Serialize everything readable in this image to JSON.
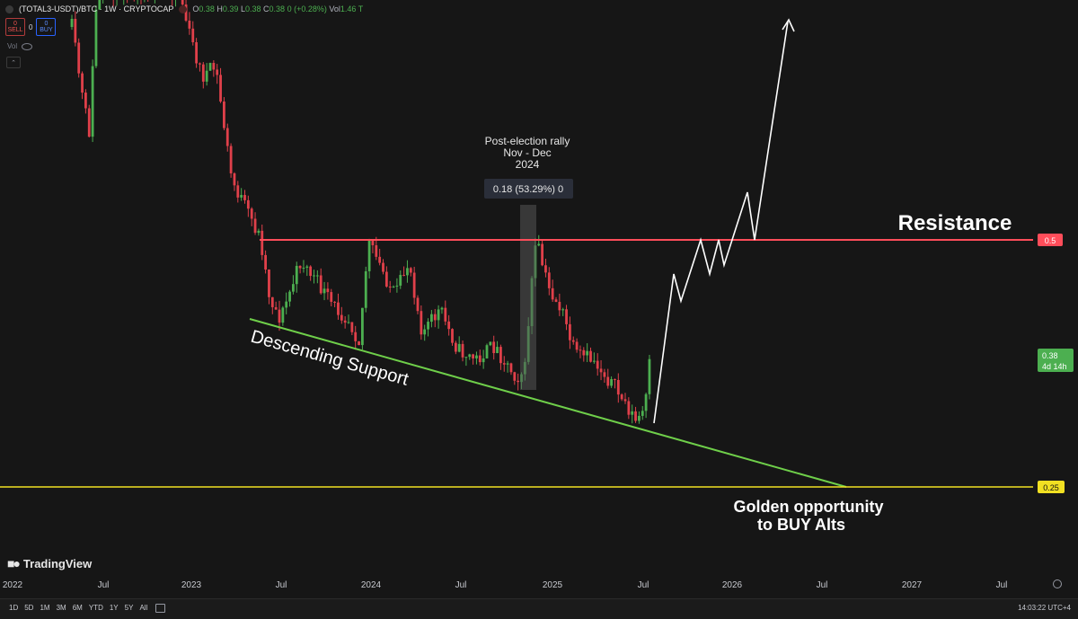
{
  "symbol": {
    "title": "(TOTAL3-USDT)/BTC · 1W · CRYPTOCAP"
  },
  "ohlc": {
    "o_label": "O",
    "o": "0.38",
    "h_label": "H",
    "h": "0.39",
    "l_label": "L",
    "l": "0.38",
    "c_label": "C",
    "c": "0.38",
    "change": "0 (+0.28%)",
    "vol_label": "Vol",
    "vol": "1.46 T"
  },
  "trade": {
    "sell_price": "0",
    "sell_label": "SELL",
    "spread": "0",
    "buy_price": "0",
    "buy_label": "BUY"
  },
  "volume_label": "Vol",
  "brand": "TradingView",
  "annotations": {
    "rally_line1": "Post-election rally",
    "rally_line2": "Nov - Dec",
    "rally_line3": "2024",
    "measure": "0.18 (53.29%) 0",
    "resistance": "Resistance",
    "support": "Descending Support",
    "golden1": "Golden opportunity",
    "golden2": "to BUY Alts"
  },
  "price_tags": {
    "resistance": "0.5",
    "support": "0.25",
    "current": "0.38",
    "countdown": "4d 14h"
  },
  "colors": {
    "up": "#4caf50",
    "down": "#e0404a",
    "resistance": "#ff4d5a",
    "support_line": "#6fcf4a",
    "golden_line": "#f1e022",
    "current_tag": "#4caf50"
  },
  "time_ranges": [
    "1D",
    "5D",
    "1M",
    "3M",
    "6M",
    "YTD",
    "1Y",
    "5Y",
    "All"
  ],
  "clock": "14:03:22 UTC+4",
  "chart_data": {
    "type": "candlestick",
    "interval": "1W",
    "x_ticks": [
      "2022",
      "Jul",
      "2023",
      "Jul",
      "2024",
      "Jul",
      "2025",
      "Jul",
      "2026",
      "Jul",
      "2027",
      "Jul"
    ],
    "horizontal_levels": [
      {
        "label": "Resistance",
        "value": 0.5
      },
      {
        "label": "Golden opportunity to BUY Alts",
        "value": 0.25
      }
    ],
    "current_price": 0.38,
    "measurement": {
      "label": "0.18 (53.29%) 0",
      "period": "Nov - Dec 2024"
    },
    "ylim": [
      0.22,
      1.3
    ],
    "grid": false
  }
}
